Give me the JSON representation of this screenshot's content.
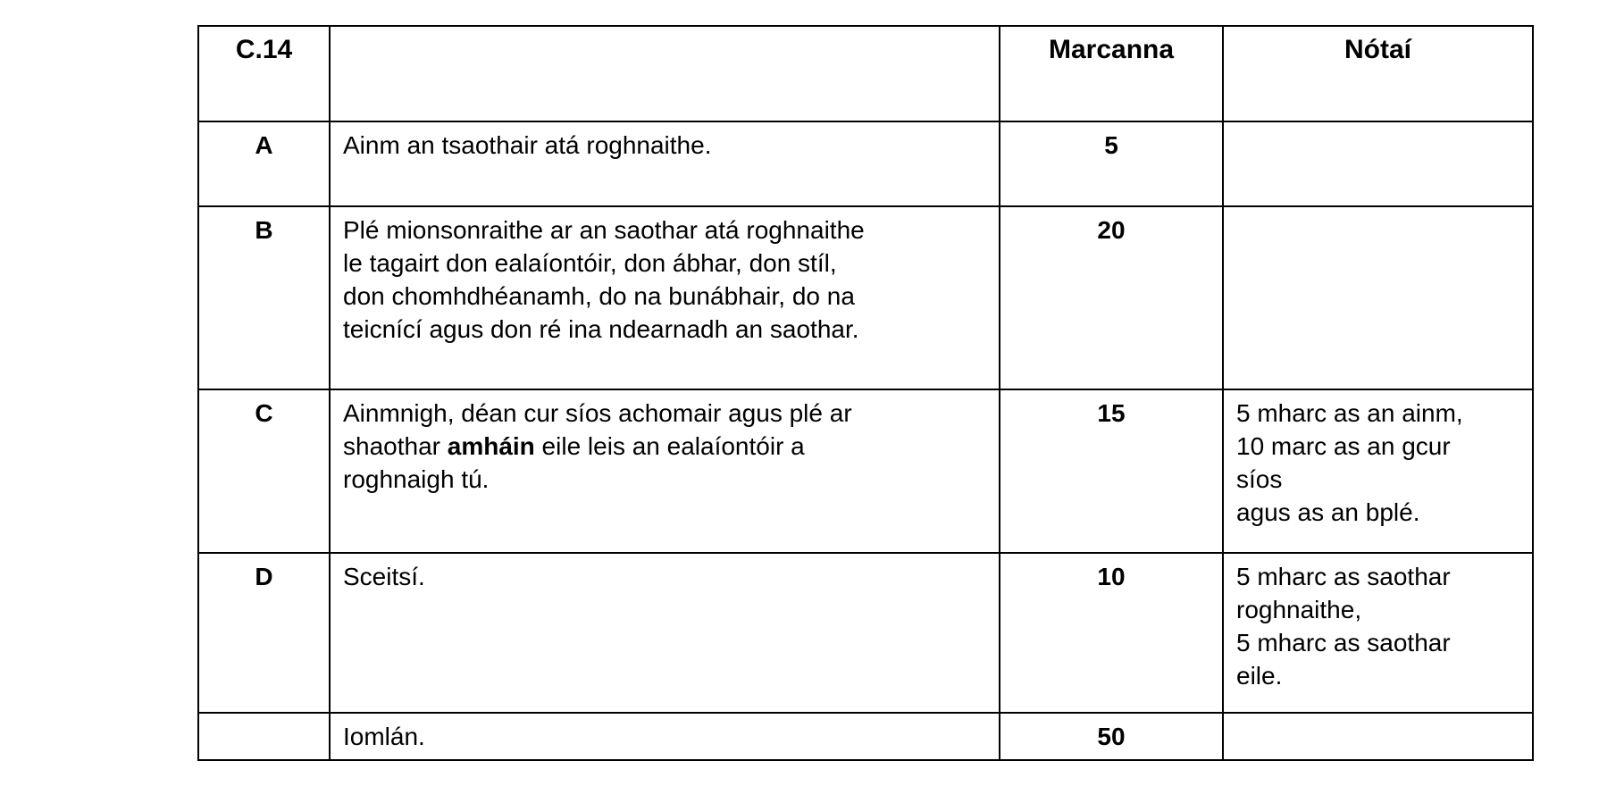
{
  "page": {
    "background": "#ffffff",
    "text_color": "#000000",
    "border_color": "#000000"
  },
  "table": {
    "header": {
      "code": "C.14",
      "title": "",
      "marks": "Marcanna",
      "notes": "Nótaí"
    },
    "rows": [
      {
        "label": "A",
        "desc": "Ainm an tsaothair atá roghnaithe.",
        "marks": "5",
        "notes": ""
      },
      {
        "label": "B",
        "desc": "Plé mionsonraithe ar an saothar atá roghnaithe\nle tagairt don ealaíontóir, don ábhar, don stíl,\ndon chomhdhéanamh, do na bunábhair, do na\nteicnící agus don ré ina ndearnadh an saothar.",
        "marks": "20",
        "notes": ""
      },
      {
        "label": "C",
        "desc_parts": {
          "before": "Ainmnigh, déan cur síos achomair agus plé ar\nshaothar ",
          "bold": "amháin",
          "after": " eile leis an ealaíontóir a\nroghnaigh tú."
        },
        "marks": "15",
        "notes": "5 mharc as an ainm,\n10 marc as an gcur\nsíos\nagus as an bplé."
      },
      {
        "label": "D",
        "desc": "Sceitsí.",
        "marks": "10",
        "notes": "5 mharc as saothar\nroghnaithe,\n5 mharc as saothar\neile."
      },
      {
        "label": "",
        "desc": "Iomlán.",
        "marks": "50",
        "notes": ""
      }
    ]
  }
}
